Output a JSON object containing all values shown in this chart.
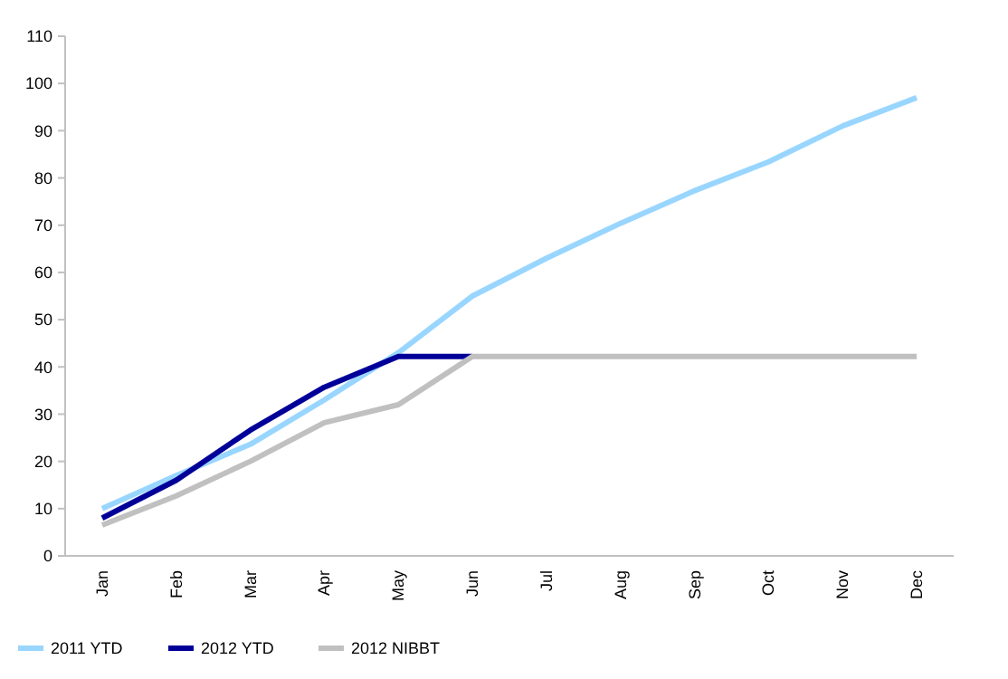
{
  "chart_data": {
    "type": "line",
    "categories": [
      "Jan",
      "Feb",
      "Mar",
      "Apr",
      "May",
      "Jun",
      "Jul",
      "Aug",
      "Sep",
      "Oct",
      "Nov",
      "Dec"
    ],
    "series": [
      {
        "name": "2011 YTD",
        "color": "#99d6ff",
        "values": [
          10,
          17,
          23.6,
          33,
          43,
          55,
          63,
          70.4,
          77.3,
          83.4,
          91,
          97
        ]
      },
      {
        "name": "2012 YTD",
        "color": "#000099",
        "values": [
          8,
          16,
          26.6,
          35.7,
          42.2,
          42.2,
          null,
          null,
          null,
          null,
          null,
          null
        ]
      },
      {
        "name": "2012 NIBBT",
        "color": "#c0c0c0",
        "values": [
          6.5,
          12.7,
          20,
          28.2,
          32,
          42.2,
          42.2,
          42.2,
          42.2,
          42.2,
          42.2,
          42.2
        ]
      }
    ],
    "ylim": [
      0,
      110
    ],
    "yticks": [
      0,
      10,
      20,
      30,
      40,
      50,
      60,
      70,
      80,
      90,
      100,
      110
    ],
    "grid": false,
    "legend": "bottom",
    "marker": "none",
    "line_style": "solid"
  }
}
